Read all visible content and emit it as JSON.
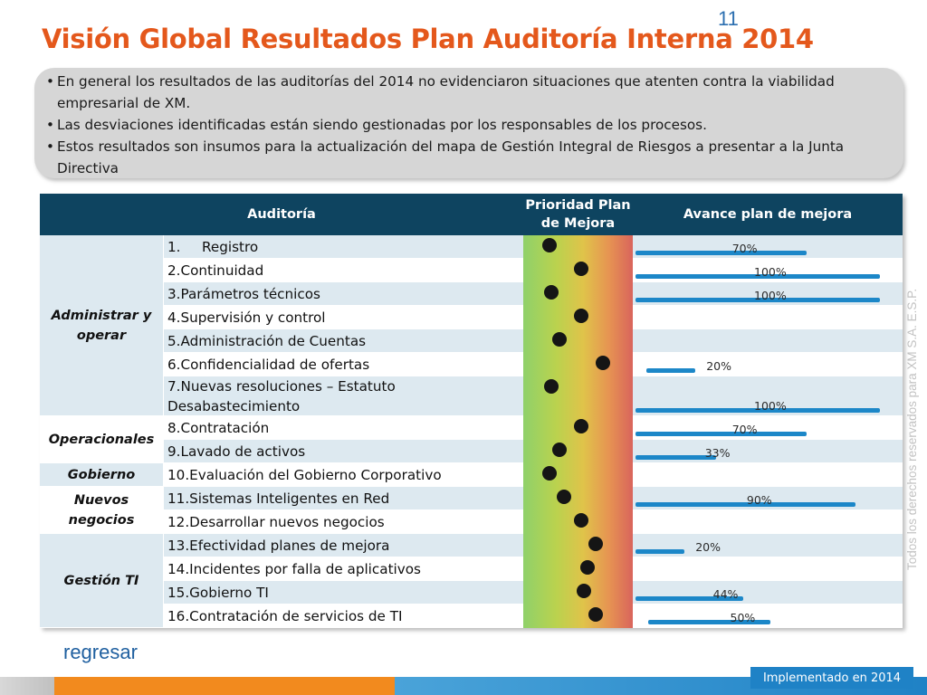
{
  "slide": {
    "number": "11",
    "title": "Visión Global Resultados Plan Auditoría Interna 2014"
  },
  "summary": {
    "bullets": [
      "En general los resultados de las auditorías del  2014 no evidenciaron situaciones que atenten contra la viabilidad empresarial de XM.",
      "Las desviaciones identificadas están siendo gestionadas por los responsables de los procesos.",
      "Estos resultados son insumos para la actualización del mapa de Gestión Integral de Riesgos a presentar a la Junta Directiva"
    ]
  },
  "side_note": "Todos los derechos reservados para XM S.A. E.S.P.",
  "table": {
    "headers": {
      "audit": "Auditoría",
      "priority": "Prioridad Plan de Mejora",
      "progress": "Avance plan de mejora"
    },
    "priority_scale_colors": [
      "#8fd16a",
      "#e0c34a",
      "#d9645c"
    ],
    "progress_bar_color": "#1c87c8",
    "groups": [
      {
        "label": "Administrar y operar"
      },
      {
        "label": "Operacionales"
      },
      {
        "label": "Gobierno"
      },
      {
        "label": "Nuevos negocios"
      },
      {
        "label": "Gestión TI"
      }
    ],
    "rows": [
      {
        "num": "1.",
        "name": "Registro",
        "priority": 0.24,
        "progress": 70,
        "progress_label": "70%"
      },
      {
        "name": "2.Continuidad",
        "priority": 0.53,
        "progress": 100,
        "progress_label": "100%"
      },
      {
        "name": "3.Parámetros técnicos",
        "priority": 0.26,
        "progress": 100,
        "progress_label": "100%"
      },
      {
        "name": "4.Supervisión y control",
        "priority": 0.53,
        "progress": null,
        "progress_label": ""
      },
      {
        "name": "5.Administración de Cuentas",
        "priority": 0.33,
        "progress": null,
        "progress_label": ""
      },
      {
        "name": "6.Confidencialidad de ofertas",
        "priority": 0.73,
        "progress": 20,
        "progress_label": "20%"
      },
      {
        "name": "7.Nuevas resoluciones – Estatuto Desabastecimiento",
        "priority": 0.26,
        "progress": 100,
        "progress_label": "100%"
      },
      {
        "name": "8.Contratación",
        "priority": 0.53,
        "progress": 70,
        "progress_label": "70%"
      },
      {
        "name": "9.Lavado de activos",
        "priority": 0.33,
        "progress": 33,
        "progress_label": "33%"
      },
      {
        "name": "10.Evaluación del Gobierno Corporativo",
        "priority": 0.24,
        "progress": null,
        "progress_label": ""
      },
      {
        "name": "11.Sistemas Inteligentes en Red",
        "priority": 0.37,
        "progress": 90,
        "progress_label": "90%"
      },
      {
        "name": "12.Desarrollar nuevos negocios",
        "priority": 0.53,
        "progress": null,
        "progress_label": ""
      },
      {
        "name": "13.Efectividad planes de mejora",
        "priority": 0.66,
        "progress": 20,
        "progress_label": "20%"
      },
      {
        "name": "14.Incidentes por falla de aplicativos",
        "priority": 0.59,
        "progress": null,
        "progress_label": ""
      },
      {
        "name": "15.Gobierno TI",
        "priority": 0.55,
        "progress": 44,
        "progress_label": "44%"
      },
      {
        "name": "16.Contratación de servicios de TI",
        "priority": 0.66,
        "progress": 50,
        "progress_label": "50%"
      }
    ]
  },
  "footer": {
    "back_link": "regresar",
    "tag": "Implementado en  2014"
  }
}
